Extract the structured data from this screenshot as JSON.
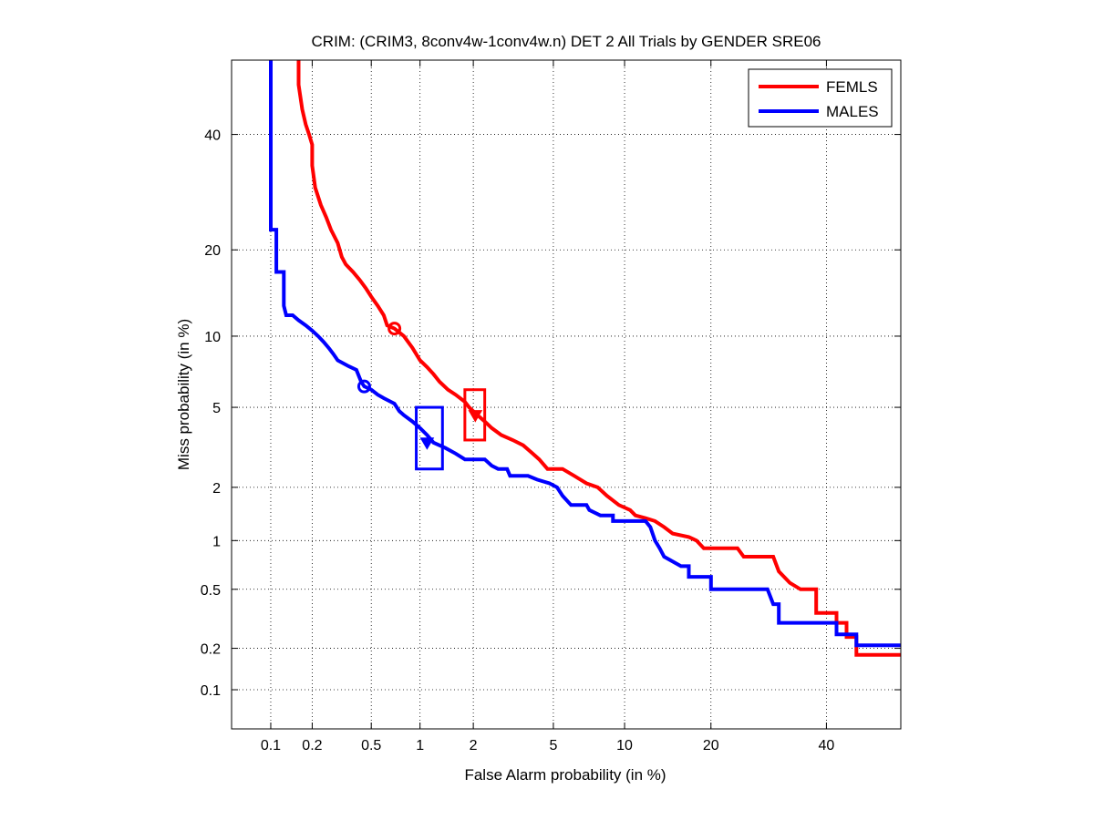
{
  "chart_data": {
    "type": "line",
    "title": "CRIM: (CRIM3, 8conv4w-1conv4w.n) DET 2 All Trials by GENDER SRE06",
    "xlabel": "False Alarm probability (in %)",
    "ylabel": "Miss probability (in %)",
    "x_scale": "probit",
    "y_scale": "probit",
    "xlim": [
      0.05,
      55
    ],
    "ylim": [
      0.05,
      55
    ],
    "x_ticks": [
      0.1,
      0.2,
      0.5,
      1,
      2,
      5,
      10,
      20,
      40
    ],
    "x_tick_labels": [
      "0.1",
      "0.2",
      "0.5",
      "1",
      "2",
      "5",
      "10",
      "20",
      "40"
    ],
    "y_ticks": [
      0.1,
      0.2,
      0.5,
      1,
      2,
      5,
      10,
      20,
      40
    ],
    "y_tick_labels": [
      "0.1",
      "0.2",
      "0.5",
      "1",
      "2",
      "5",
      "10",
      "20",
      "40"
    ],
    "grid": true,
    "legend_position": "top-right",
    "series": [
      {
        "name": "FEMLS",
        "color": "#ff0000",
        "points": [
          [
            0.16,
            55
          ],
          [
            0.16,
            50
          ],
          [
            0.17,
            45
          ],
          [
            0.18,
            42
          ],
          [
            0.19,
            40
          ],
          [
            0.2,
            38
          ],
          [
            0.2,
            34
          ],
          [
            0.21,
            30
          ],
          [
            0.23,
            27
          ],
          [
            0.25,
            25
          ],
          [
            0.27,
            23
          ],
          [
            0.3,
            21
          ],
          [
            0.32,
            19
          ],
          [
            0.34,
            18
          ],
          [
            0.38,
            17
          ],
          [
            0.42,
            16
          ],
          [
            0.46,
            15
          ],
          [
            0.5,
            14
          ],
          [
            0.55,
            13
          ],
          [
            0.6,
            12
          ],
          [
            0.63,
            11
          ],
          [
            0.7,
            10.7
          ],
          [
            0.8,
            10
          ],
          [
            0.9,
            9
          ],
          [
            1.0,
            8
          ],
          [
            1.1,
            7.5
          ],
          [
            1.2,
            7
          ],
          [
            1.3,
            6.5
          ],
          [
            1.45,
            6
          ],
          [
            1.6,
            5.7
          ],
          [
            1.8,
            5.3
          ],
          [
            1.9,
            5
          ],
          [
            2.05,
            4.7
          ],
          [
            2.3,
            4.3
          ],
          [
            2.5,
            4
          ],
          [
            2.8,
            3.7
          ],
          [
            3.2,
            3.5
          ],
          [
            3.6,
            3.3
          ],
          [
            4.0,
            3.0
          ],
          [
            4.3,
            2.8
          ],
          [
            4.7,
            2.5
          ],
          [
            5.5,
            2.5
          ],
          [
            6.2,
            2.3
          ],
          [
            7.0,
            2.1
          ],
          [
            7.8,
            2.0
          ],
          [
            8.5,
            1.8
          ],
          [
            9.5,
            1.6
          ],
          [
            10.5,
            1.5
          ],
          [
            11,
            1.4
          ],
          [
            12,
            1.35
          ],
          [
            13,
            1.3
          ],
          [
            14,
            1.2
          ],
          [
            15,
            1.1
          ],
          [
            17,
            1.05
          ],
          [
            18,
            1.0
          ],
          [
            19,
            0.9
          ],
          [
            24,
            0.9
          ],
          [
            25,
            0.8
          ],
          [
            30,
            0.8
          ],
          [
            31,
            0.65
          ],
          [
            33,
            0.55
          ],
          [
            35,
            0.5
          ],
          [
            38,
            0.5
          ],
          [
            38,
            0.35
          ],
          [
            42,
            0.35
          ],
          [
            42,
            0.3
          ],
          [
            44,
            0.3
          ],
          [
            44,
            0.24
          ],
          [
            46,
            0.24
          ],
          [
            46,
            0.18
          ],
          [
            55,
            0.18
          ]
        ]
      },
      {
        "name": "MALES",
        "color": "#0000ff",
        "points": [
          [
            0.1,
            55
          ],
          [
            0.1,
            23
          ],
          [
            0.11,
            23
          ],
          [
            0.11,
            17
          ],
          [
            0.125,
            17
          ],
          [
            0.125,
            13
          ],
          [
            0.13,
            12
          ],
          [
            0.145,
            12
          ],
          [
            0.16,
            11.5
          ],
          [
            0.18,
            11
          ],
          [
            0.2,
            10.5
          ],
          [
            0.22,
            10
          ],
          [
            0.24,
            9.5
          ],
          [
            0.26,
            9
          ],
          [
            0.28,
            8.5
          ],
          [
            0.3,
            8
          ],
          [
            0.35,
            7.6
          ],
          [
            0.4,
            7.3
          ],
          [
            0.43,
            6.5
          ],
          [
            0.45,
            6.2
          ],
          [
            0.5,
            6
          ],
          [
            0.55,
            5.7
          ],
          [
            0.6,
            5.5
          ],
          [
            0.7,
            5.2
          ],
          [
            0.75,
            4.8
          ],
          [
            0.8,
            4.6
          ],
          [
            0.9,
            4.3
          ],
          [
            1.0,
            4.0
          ],
          [
            1.1,
            3.7
          ],
          [
            1.2,
            3.4
          ],
          [
            1.4,
            3.2
          ],
          [
            1.6,
            3.0
          ],
          [
            1.8,
            2.8
          ],
          [
            2.3,
            2.8
          ],
          [
            2.5,
            2.6
          ],
          [
            2.7,
            2.5
          ],
          [
            3.0,
            2.5
          ],
          [
            3.1,
            2.3
          ],
          [
            3.8,
            2.3
          ],
          [
            4.2,
            2.2
          ],
          [
            4.8,
            2.1
          ],
          [
            5.2,
            2.0
          ],
          [
            5.5,
            1.8
          ],
          [
            6.0,
            1.6
          ],
          [
            7.0,
            1.6
          ],
          [
            7.2,
            1.5
          ],
          [
            8,
            1.4
          ],
          [
            9,
            1.4
          ],
          [
            9,
            1.3
          ],
          [
            12,
            1.3
          ],
          [
            12.5,
            1.2
          ],
          [
            13,
            1.0
          ],
          [
            13.5,
            0.9
          ],
          [
            14,
            0.8
          ],
          [
            16,
            0.7
          ],
          [
            17,
            0.7
          ],
          [
            17,
            0.6
          ],
          [
            20,
            0.6
          ],
          [
            20,
            0.5
          ],
          [
            29,
            0.5
          ],
          [
            30,
            0.4
          ],
          [
            31,
            0.4
          ],
          [
            31,
            0.3
          ],
          [
            42,
            0.3
          ],
          [
            42,
            0.25
          ],
          [
            46,
            0.25
          ],
          [
            46,
            0.21
          ],
          [
            55,
            0.21
          ]
        ]
      }
    ],
    "markers": [
      {
        "series": "FEMLS",
        "shape": "circle",
        "x": 0.7,
        "y": 10.7,
        "color": "#ff0000"
      },
      {
        "series": "FEMLS",
        "shape": "triangle",
        "x": 2.05,
        "y": 4.6,
        "color": "#ff0000"
      },
      {
        "series": "MALES",
        "shape": "circle",
        "x": 0.45,
        "y": 6.2,
        "color": "#0000ff"
      },
      {
        "series": "MALES",
        "shape": "triangle",
        "x": 1.1,
        "y": 3.4,
        "color": "#0000ff"
      }
    ],
    "confidence_boxes": [
      {
        "series": "FEMLS",
        "x_range": [
          1.8,
          2.3
        ],
        "y_range": [
          3.5,
          6.0
        ],
        "color": "#ff0000"
      },
      {
        "series": "MALES",
        "x_range": [
          0.95,
          1.35
        ],
        "y_range": [
          2.5,
          5.0
        ],
        "color": "#0000ff"
      }
    ]
  }
}
